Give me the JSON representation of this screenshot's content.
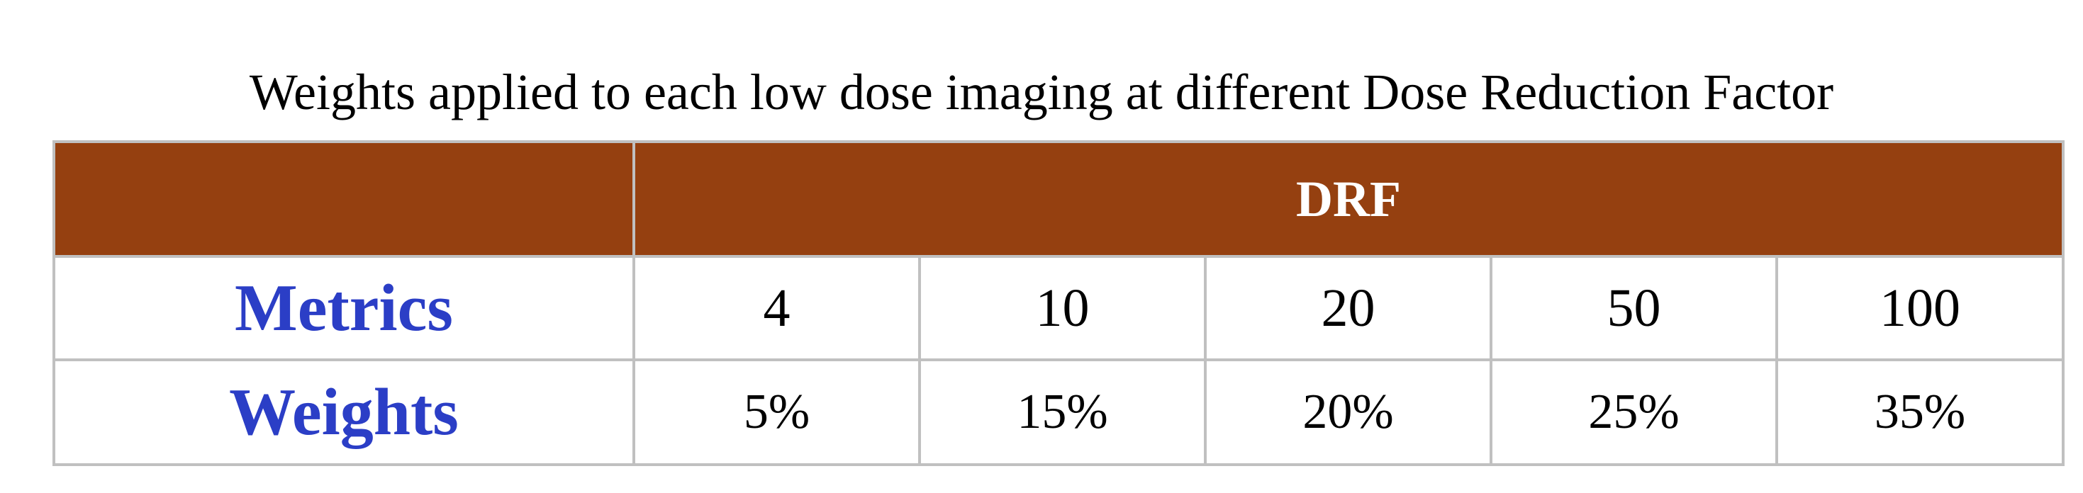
{
  "title": "Weights applied to each low dose imaging at different Dose Reduction Factor",
  "table": {
    "corner_header": "",
    "group_header": "DRF",
    "rows": [
      {
        "label": "Metrics",
        "values": [
          "4",
          "10",
          "20",
          "50",
          "100"
        ]
      },
      {
        "label": "Weights",
        "values": [
          "5%",
          "15%",
          "20%",
          "25%",
          "35%"
        ]
      }
    ]
  },
  "colors": {
    "header_background": "#954010",
    "header_text": "#ffffff",
    "row_label_text": "#2b3ec6",
    "grid_lines": "#c0c0c0"
  }
}
